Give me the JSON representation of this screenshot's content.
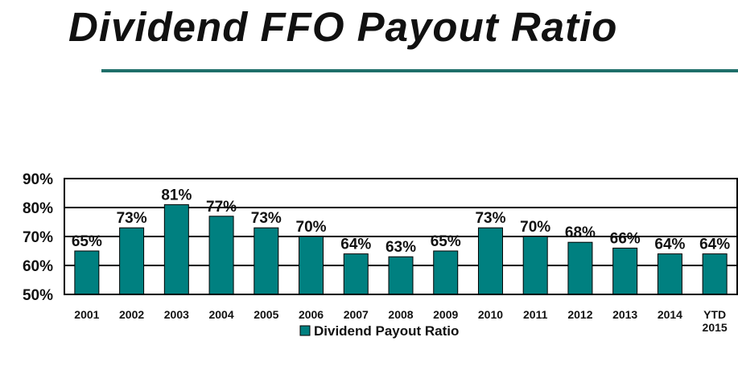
{
  "page": {
    "title": "Dividend FFO Payout Ratio"
  },
  "colors": {
    "bar": "#008080",
    "bar_stroke": "#000000",
    "accent_rule": "#1f6f6a"
  },
  "chart_data": {
    "type": "bar",
    "title": "Dividend FFO Payout Ratio",
    "categories": [
      "2001",
      "2002",
      "2003",
      "2004",
      "2005",
      "2006",
      "2007",
      "2008",
      "2009",
      "2010",
      "2011",
      "2012",
      "2013",
      "2014",
      "YTD 2015"
    ],
    "series": [
      {
        "name": "Dividend Payout Ratio",
        "values": [
          65,
          73,
          81,
          77,
          73,
          70,
          64,
          63,
          65,
          73,
          70,
          68,
          66,
          64,
          64
        ],
        "labels": [
          "65%",
          "73%",
          "81%",
          "77%",
          "73%",
          "70%",
          "64%",
          "63%",
          "65%",
          "73%",
          "70%",
          "68%",
          "66%",
          "64%",
          "64%"
        ]
      }
    ],
    "ylim": [
      50,
      90
    ],
    "yticks": [
      50,
      60,
      70,
      80,
      90
    ],
    "ytick_labels": [
      "50%",
      "60%",
      "70%",
      "80%",
      "90%"
    ],
    "grid": true,
    "legend": "bottom-center"
  }
}
